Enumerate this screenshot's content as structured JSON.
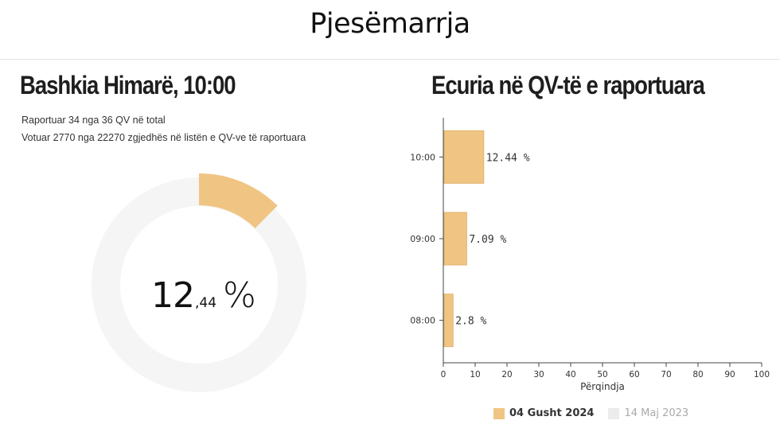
{
  "page": {
    "title": "Pjesëmarrja"
  },
  "left": {
    "heading": "Bashkia Himarë, 10:00",
    "reported_line": "Raportuar 34 nga 36 QV në total",
    "voted_line": "Votuar 2770 nga 22270 zgjedhës në listën e QV-ve të raportuara",
    "percent_int": "12",
    "percent_dec": ",44",
    "percent_sign": "%",
    "percent_value": 12.44
  },
  "right": {
    "heading": "Ecuria në QV-të e raportuara"
  },
  "colors": {
    "primary": "#f0c583",
    "secondary": "#ececec",
    "ring_track": "#f5f5f5",
    "axis": "#444444"
  },
  "chart_data": {
    "type": "bar",
    "orientation": "horizontal",
    "categories": [
      "10:00",
      "09:00",
      "08:00"
    ],
    "series": [
      {
        "name": "04 Gusht 2024",
        "values": [
          12.44,
          7.09,
          2.8
        ],
        "value_labels": [
          "12.44 %",
          "7.09 %",
          "2.8 %"
        ]
      }
    ],
    "xlabel": "Përqindja",
    "xlim": [
      0,
      100
    ],
    "xticks": [
      "0",
      "10",
      "20",
      "30",
      "40",
      "50",
      "60",
      "70",
      "80",
      "90",
      "100"
    ],
    "legend": [
      {
        "label": "04 Gusht 2024",
        "active": true
      },
      {
        "label": "14 Maj 2023",
        "active": false
      }
    ],
    "legend_position": "bottom"
  }
}
